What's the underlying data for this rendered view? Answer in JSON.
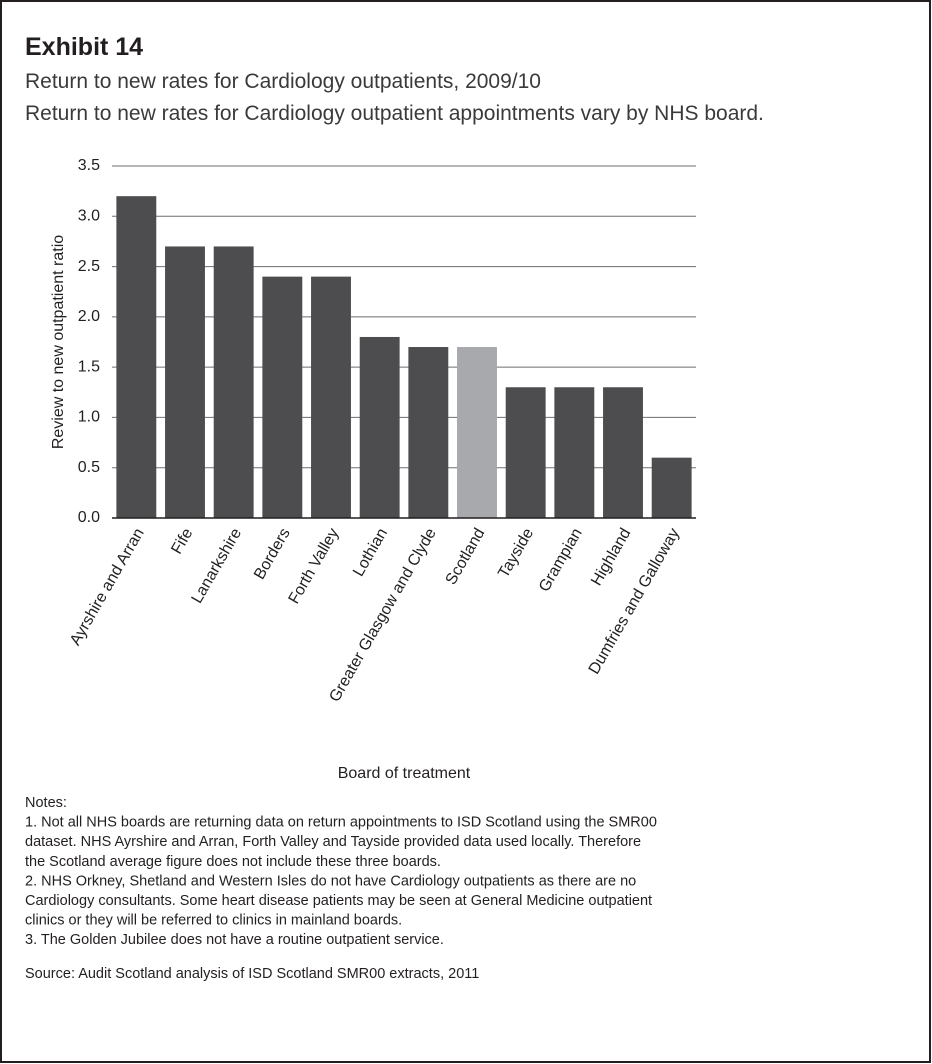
{
  "chart_data": {
    "type": "bar",
    "title": "Exhibit 14",
    "subtitle": "Return to new rates for Cardiology outpatients, 2009/10",
    "description": "Return to new rates for Cardiology outpatient appointments vary by NHS board.",
    "categories": [
      "Ayrshire and Arran",
      "Fife",
      "Lanarkshire",
      "Borders",
      "Forth Valley",
      "Lothian",
      "Greater Glasgow and Clyde",
      "Scotland",
      "Tayside",
      "Grampian",
      "Highland",
      "Dumfries and Galloway"
    ],
    "values": [
      3.2,
      2.7,
      2.7,
      2.4,
      2.4,
      1.8,
      1.7,
      1.7,
      1.3,
      1.3,
      1.3,
      0.6
    ],
    "colors": [
      "#4d4d4f",
      "#4d4d4f",
      "#4d4d4f",
      "#4d4d4f",
      "#4d4d4f",
      "#4d4d4f",
      "#4d4d4f",
      "#a7a9ac",
      "#4d4d4f",
      "#4d4d4f",
      "#4d4d4f",
      "#4d4d4f"
    ],
    "ylim": [
      0,
      3.5
    ],
    "yticks": [
      {
        "value": 0,
        "label": "0.0"
      },
      0.5,
      {
        "value": 1,
        "label": "1.0"
      },
      1.5,
      {
        "value": 2,
        "label": "2.0"
      },
      2.5,
      {
        "value": 3,
        "label": "3.0"
      },
      3.5
    ],
    "y_label": "Review to new outpatient ratio",
    "x_label": "Board of treatment",
    "grid": true,
    "notes": [
      "Notes:",
      "1. Not all NHS boards are returning data on return appointments to ISD Scotland using the SMR00",
      "dataset. NHS Ayrshire and Arran, Forth Valley and Tayside provided data used locally. Therefore",
      "the Scotland average figure does not include these three boards.",
      "2. NHS Orkney, Shetland and Western Isles do not have Cardiology outpatients as there are no",
      "Cardiology consultants. Some heart disease patients may be seen at General Medicine outpatient",
      "clinics or they will be referred to clinics in mainland boards.",
      "3. The Golden Jubilee does not have a routine outpatient service."
    ],
    "source": "Source: Audit Scotland analysis of ISD Scotland SMR00 extracts, 2011"
  }
}
